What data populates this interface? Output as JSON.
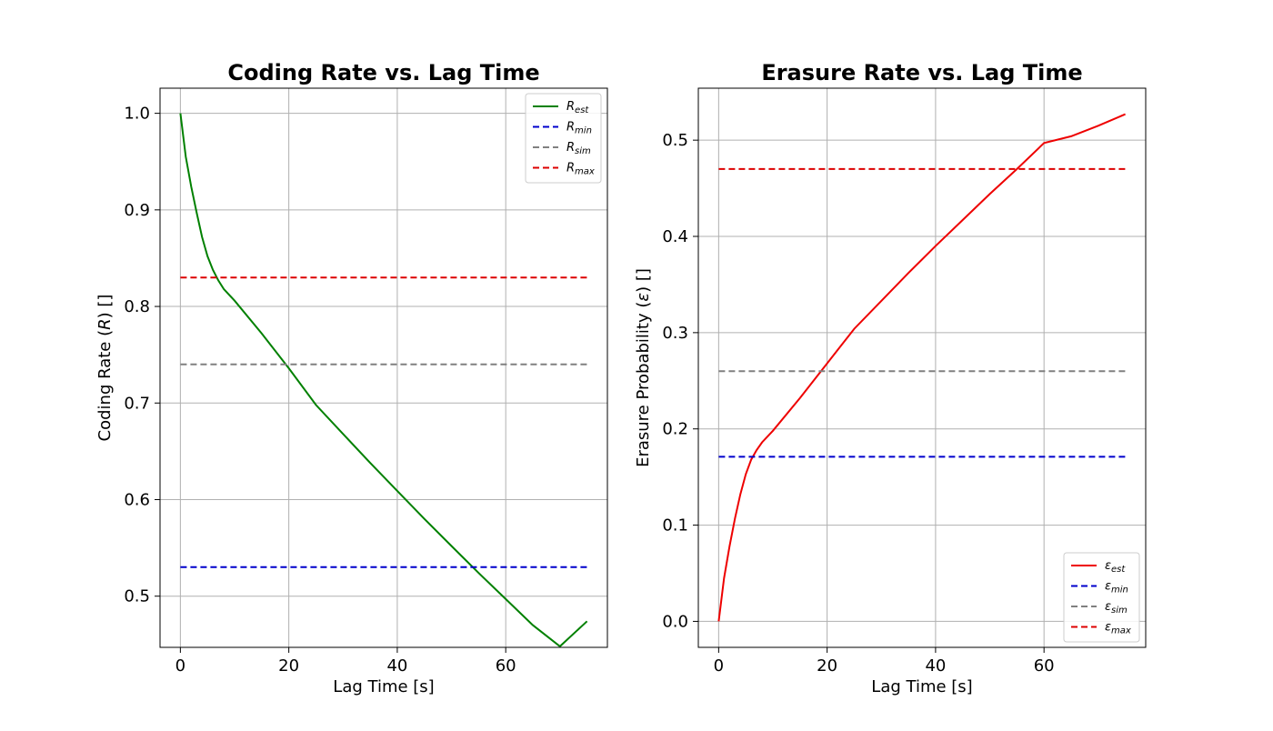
{
  "chart_data": [
    {
      "type": "line",
      "title": "Coding Rate vs. Lag Time",
      "xlabel": "Lag Time [s]",
      "ylabel": "Coding Rate (R) []",
      "ylabel_parts": {
        "before": "Coding Rate (",
        "symbol": "R",
        "after": ") []"
      },
      "xlim": [
        -3.75,
        78.75
      ],
      "ylim": [
        0.447,
        1.026
      ],
      "xticks": [
        0,
        20,
        40,
        60
      ],
      "yticks": [
        0.5,
        0.6,
        0.7,
        0.8,
        0.9,
        1.0
      ],
      "ytick_labels": [
        "0.5",
        "0.6",
        "0.7",
        "0.8",
        "0.9",
        "1.0"
      ],
      "grid": true,
      "legend_position": "top-right",
      "series": [
        {
          "name": "R_est",
          "symbol": "R",
          "subscript": "est",
          "style": "solid",
          "color": "#008000",
          "x": [
            0,
            1,
            2,
            3,
            4,
            5,
            6,
            7,
            8,
            10,
            15,
            20,
            25,
            30,
            35,
            40,
            45,
            50,
            55,
            60,
            65,
            70,
            75
          ],
          "y": [
            1.0,
            0.955,
            0.924,
            0.897,
            0.872,
            0.852,
            0.838,
            0.827,
            0.818,
            0.806,
            0.772,
            0.736,
            0.698,
            0.668,
            0.638,
            0.609,
            0.58,
            0.552,
            0.524,
            0.497,
            0.47,
            0.448,
            0.474
          ]
        },
        {
          "name": "R_min",
          "symbol": "R",
          "subscript": "min",
          "style": "dashed",
          "color": "#0000cc",
          "x": [
            0,
            75
          ],
          "y": [
            0.53,
            0.53
          ]
        },
        {
          "name": "R_sim",
          "symbol": "R",
          "subscript": "sim",
          "style": "dashed",
          "color": "#808080",
          "x": [
            0,
            75
          ],
          "y": [
            0.74,
            0.74
          ]
        },
        {
          "name": "R_max",
          "symbol": "R",
          "subscript": "max",
          "style": "dashed",
          "color": "#dd0000",
          "x": [
            0,
            75
          ],
          "y": [
            0.83,
            0.83
          ]
        }
      ]
    },
    {
      "type": "line",
      "title": "Erasure Rate vs. Lag Time",
      "xlabel": "Lag Time [s]",
      "ylabel": "Erasure Probability (ε) []",
      "ylabel_parts": {
        "before": "Erasure Probability (",
        "symbol": "ε",
        "after": ") []"
      },
      "xlim": [
        -3.75,
        78.75
      ],
      "ylim": [
        -0.027,
        0.554
      ],
      "xticks": [
        0,
        20,
        40,
        60
      ],
      "yticks": [
        0.0,
        0.1,
        0.2,
        0.3,
        0.4,
        0.5
      ],
      "ytick_labels": [
        "0.0",
        "0.1",
        "0.2",
        "0.3",
        "0.4",
        "0.5"
      ],
      "grid": true,
      "legend_position": "bottom-right",
      "series": [
        {
          "name": "ε_est",
          "symbol": "ε",
          "subscript": "est",
          "style": "solid",
          "color": "#ee0000",
          "x": [
            0,
            1,
            2,
            3,
            4,
            5,
            6,
            7,
            8,
            10,
            15,
            20,
            25,
            30,
            35,
            40,
            45,
            50,
            55,
            60,
            65,
            70,
            75
          ],
          "y": [
            0.0,
            0.045,
            0.078,
            0.107,
            0.132,
            0.153,
            0.168,
            0.178,
            0.186,
            0.198,
            0.232,
            0.268,
            0.304,
            0.333,
            0.362,
            0.39,
            0.417,
            0.444,
            0.47,
            0.497,
            0.504,
            0.515,
            0.527
          ]
        },
        {
          "name": "ε_min",
          "symbol": "ε",
          "subscript": "min",
          "style": "dashed",
          "color": "#0000cc",
          "x": [
            0,
            75
          ],
          "y": [
            0.171,
            0.171
          ]
        },
        {
          "name": "ε_sim",
          "symbol": "ε",
          "subscript": "sim",
          "style": "dashed",
          "color": "#808080",
          "x": [
            0,
            75
          ],
          "y": [
            0.26,
            0.26
          ]
        },
        {
          "name": "ε_max",
          "symbol": "ε",
          "subscript": "max",
          "style": "dashed",
          "color": "#dd0000",
          "x": [
            0,
            75
          ],
          "y": [
            0.47,
            0.47
          ]
        }
      ]
    }
  ]
}
